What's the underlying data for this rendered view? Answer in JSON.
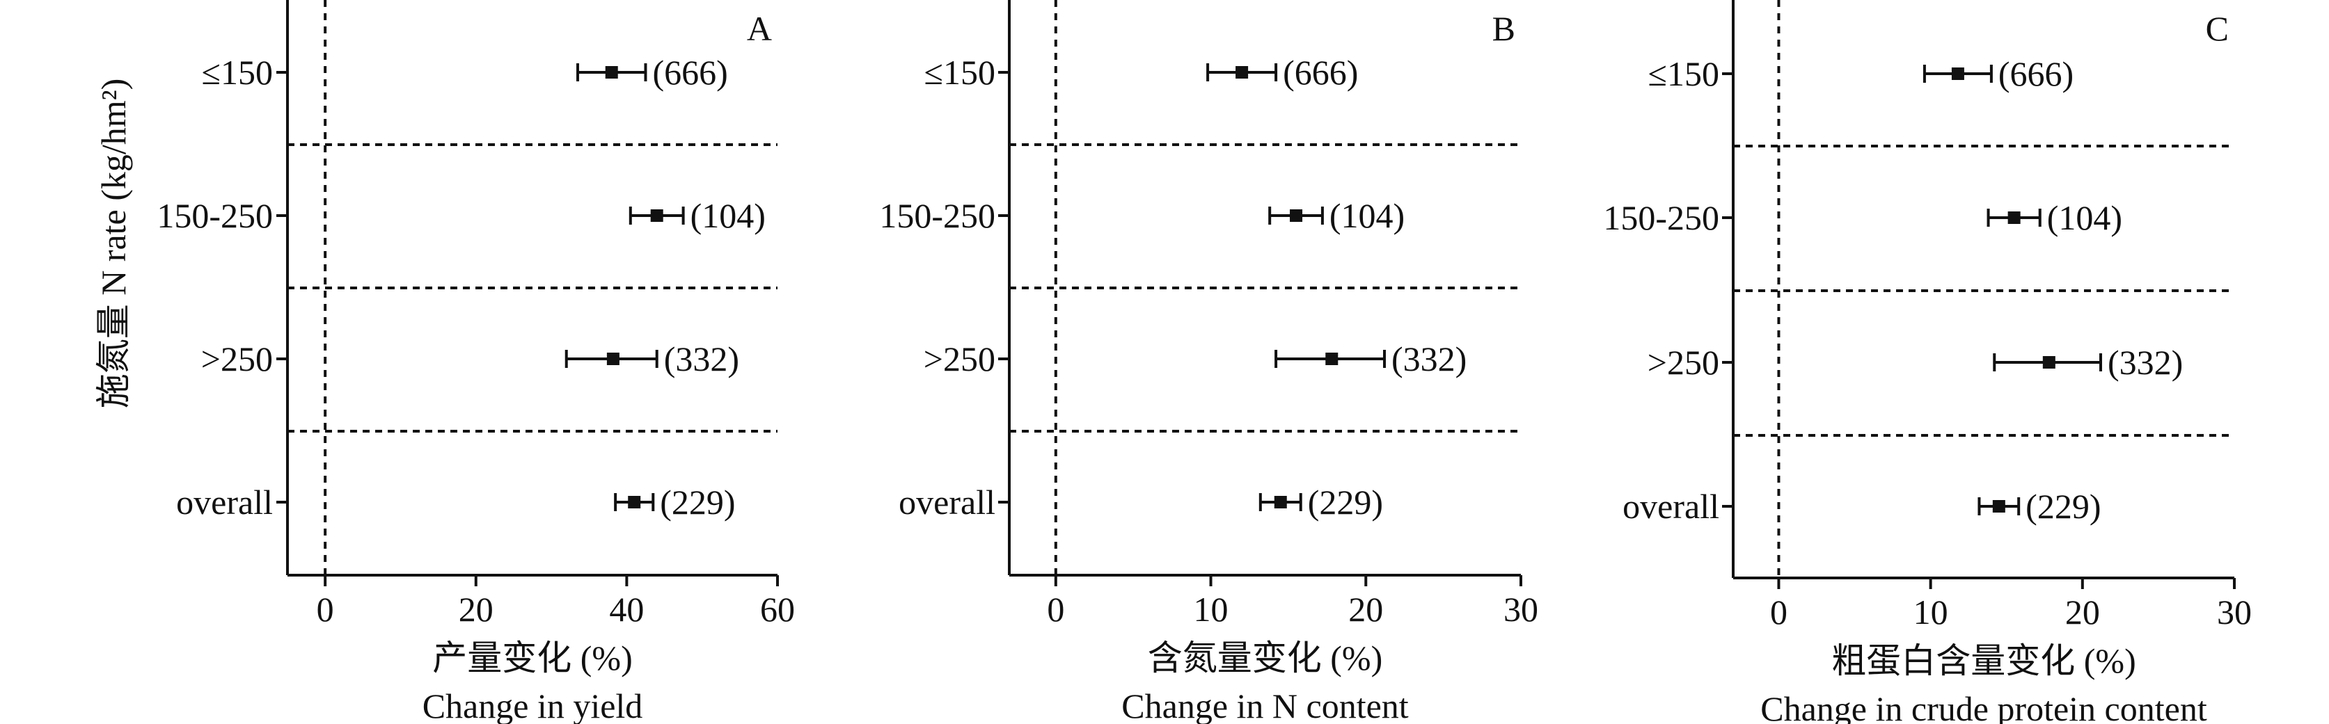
{
  "figure": {
    "ylabel": "施氮量 N rate (kg/hm²)"
  },
  "chart_data": [
    {
      "type": "forest",
      "panel": "A",
      "categories": [
        "≤150",
        "150-250",
        ">250",
        "overall"
      ],
      "values": [
        38,
        44,
        38.2,
        41
      ],
      "ci_low": [
        33.5,
        40.5,
        32,
        38.5
      ],
      "ci_high": [
        42.5,
        47.5,
        44,
        43.5
      ],
      "n": [
        "(666)",
        "(104)",
        "(332)",
        "(229)"
      ],
      "xlim": [
        -5,
        60
      ],
      "xticks": [
        0,
        20,
        40,
        60
      ],
      "xlabel_cn": "产量变化 (%)",
      "xlabel_en": "Change in yield",
      "reference_line": 0
    },
    {
      "type": "forest",
      "panel": "B",
      "categories": [
        "≤150",
        "150-250",
        ">250",
        "overall"
      ],
      "values": [
        12,
        15.5,
        17.8,
        14.5
      ],
      "ci_low": [
        9.8,
        13.8,
        14.2,
        13.2
      ],
      "ci_high": [
        14.2,
        17.2,
        21.2,
        15.8
      ],
      "n": [
        "(666)",
        "(104)",
        "(332)",
        "(229)"
      ],
      "xlim": [
        -3,
        30
      ],
      "xticks": [
        0,
        10,
        20,
        30
      ],
      "xlabel_cn": "含氮量变化 (%)",
      "xlabel_en": "Change in N content",
      "reference_line": 0
    },
    {
      "type": "forest",
      "panel": "C",
      "categories": [
        "≤150",
        "150-250",
        ">250",
        "overall"
      ],
      "values": [
        11.8,
        15.5,
        17.8,
        14.5
      ],
      "ci_low": [
        9.6,
        13.8,
        14.2,
        13.2
      ],
      "ci_high": [
        14,
        17.2,
        21.2,
        15.8
      ],
      "n": [
        "(666)",
        "(104)",
        "(332)",
        "(229)"
      ],
      "xlim": [
        -3,
        30
      ],
      "xticks": [
        0,
        10,
        20,
        30
      ],
      "xlabel_cn": "粗蛋白含量变化 (%)",
      "xlabel_en": "Change in crude protein content",
      "reference_line": 0
    }
  ]
}
